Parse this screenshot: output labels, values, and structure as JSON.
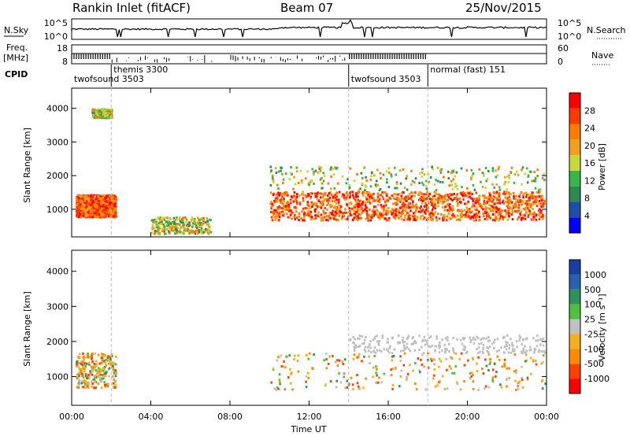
{
  "header": {
    "station": "Rankin Inlet (fitACF)",
    "beam": "Beam 07",
    "date": "25/Nov/2015"
  },
  "noise_panel": {
    "left_label": "N.Sky",
    "right_label": "N.Search",
    "ticks_left": [
      "10^5",
      "10^0"
    ],
    "ticks_right": [
      "10^5",
      "10^0"
    ]
  },
  "freq_panel": {
    "left_label_1": "Freq.",
    "left_label_2": "[MHz]",
    "left_ticks": [
      "18",
      "8"
    ],
    "right_label": "Nave",
    "right_ticks": [
      "60",
      "0"
    ],
    "cpid_label": "CPID"
  },
  "cpid_segments": [
    {
      "name": "twofsound 3503",
      "start_h": 0
    },
    {
      "name": "themis 3300",
      "start_h": 2.0
    },
    {
      "name": "twofsound 3503",
      "start_h": 14.0
    },
    {
      "name": "normal (fast) 151",
      "start_h": 18.0
    }
  ],
  "colors": {
    "power_scale": [
      "#0000ff",
      "#1f4fa8",
      "#2d8a4f",
      "#39b54a",
      "#c6d83a",
      "#f0a020",
      "#ff7a00",
      "#ff3a00",
      "#ff0000"
    ],
    "velocity_scale": [
      "#1a3fa0",
      "#2a60b0",
      "#2f9060",
      "#4fc040",
      "#c0c0c0",
      "#f0b020",
      "#ff8a00",
      "#ff4000",
      "#ff0000"
    ]
  },
  "chart_data": [
    {
      "type": "heatmap",
      "name_panel": "power",
      "xlabel": "",
      "ylabel": "Slant Range [km]",
      "xlim": [
        0,
        24
      ],
      "ylim": [
        180,
        4600
      ],
      "yticks": [
        "1000",
        "2000",
        "3000",
        "4000"
      ],
      "colorbar_label": "Power [dB]",
      "colorbar_ticks": [
        "4",
        "8",
        "12",
        "16",
        "20",
        "24",
        "28"
      ],
      "scatter_bands": [
        {
          "x": [
            0.2,
            2.2
          ],
          "y": [
            800,
            1450
          ],
          "level": "high"
        },
        {
          "x": [
            1.0,
            2.0
          ],
          "y": [
            3750,
            4000
          ],
          "level": "mixed"
        },
        {
          "x": [
            10.0,
            23.9
          ],
          "y": [
            700,
            1550
          ],
          "level": "high"
        },
        {
          "x": [
            10.0,
            23.9
          ],
          "y": [
            1600,
            2300
          ],
          "level": "mixed"
        },
        {
          "x": [
            4.0,
            7.0
          ],
          "y": [
            300,
            800
          ],
          "level": "mixed"
        }
      ]
    },
    {
      "type": "heatmap",
      "name_panel": "velocity",
      "xlabel": "Time UT",
      "ylabel": "Slant Range [km]",
      "xlim": [
        0,
        24
      ],
      "ylim": [
        180,
        4600
      ],
      "xticks": [
        "00:00",
        "04:00",
        "08:00",
        "12:00",
        "16:00",
        "20:00",
        "00:00"
      ],
      "yticks": [
        "1000",
        "2000",
        "3000",
        "4000"
      ],
      "colorbar_label": "Velocity [m s⁻¹]",
      "colorbar_ticks": [
        "1000",
        "500",
        "100",
        "25",
        "-25",
        "-100",
        "-500",
        "-1000"
      ],
      "scatter_bands": [
        {
          "x": [
            0.2,
            2.2
          ],
          "y": [
            700,
            1700
          ],
          "level": "mixed"
        },
        {
          "x": [
            10.0,
            23.9
          ],
          "y": [
            650,
            1700
          ],
          "level": "mixed"
        },
        {
          "x": [
            14.0,
            23.9
          ],
          "y": [
            1700,
            2200
          ],
          "level": "low"
        }
      ]
    }
  ]
}
